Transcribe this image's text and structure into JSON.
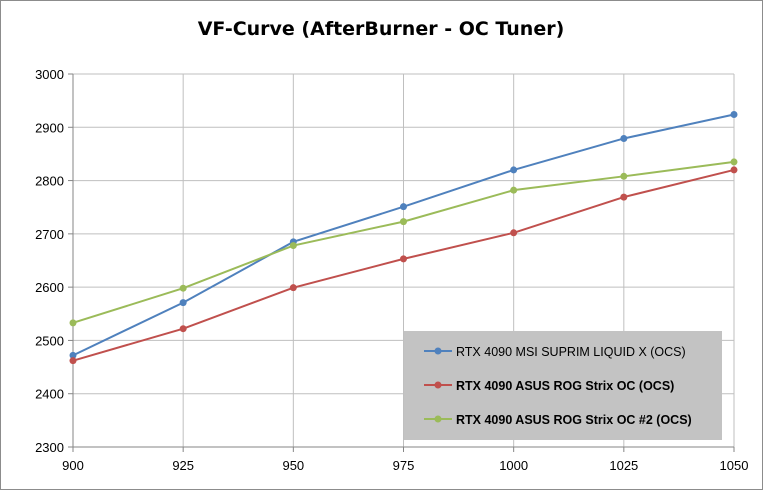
{
  "chart_data": {
    "type": "line",
    "title": "VF-Curve (AfterBurner - OC Tuner)",
    "xlabel": "",
    "ylabel": "",
    "x": [
      900,
      925,
      950,
      975,
      1000,
      1025,
      1050
    ],
    "xlim": [
      900,
      1050
    ],
    "ylim": [
      2300,
      3000
    ],
    "x_ticks": [
      "900",
      "925",
      "950",
      "975",
      "1000",
      "1025",
      "1050"
    ],
    "y_ticks": [
      "2300",
      "2400",
      "2500",
      "2600",
      "2700",
      "2800",
      "2900",
      "3000"
    ],
    "grid": true,
    "legend_position": "bottom-right",
    "series": [
      {
        "name": "RTX 4090 MSI SUPRIM LIQUID X (OCS)",
        "color": "#4f81bd",
        "bold": false,
        "values": [
          2472,
          2571,
          2685,
          2751,
          2820,
          2879,
          2924
        ]
      },
      {
        "name": "RTX 4090 ASUS ROG Strix OC (OCS)",
        "color": "#c0504d",
        "bold": true,
        "values": [
          2462,
          2522,
          2599,
          2653,
          2702,
          2769,
          2820
        ]
      },
      {
        "name": "RTX 4090 ASUS ROG Strix OC #2 (OCS)",
        "color": "#9bbb59",
        "bold": true,
        "values": [
          2533,
          2598,
          2678,
          2723,
          2782,
          2808,
          2835
        ]
      }
    ]
  }
}
